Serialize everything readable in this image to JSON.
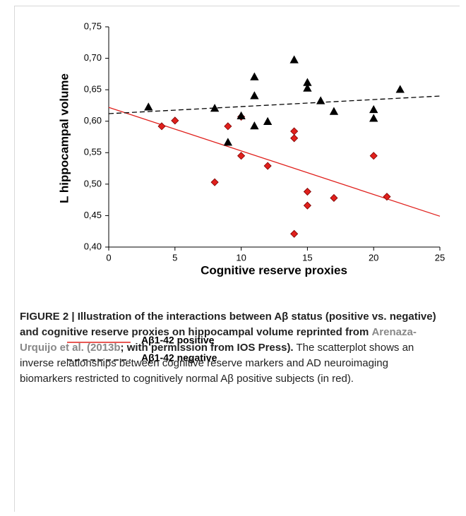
{
  "chart_data": {
    "type": "scatter",
    "xlabel": "Cognitive reserve proxies",
    "ylabel": "L hippocampal volume",
    "xlim": [
      0,
      25
    ],
    "xticks": [
      0,
      5,
      10,
      15,
      20,
      25
    ],
    "ylim": [
      0.4,
      0.75
    ],
    "yticks": [
      {
        "value": 0.4,
        "label": "0,40"
      },
      {
        "value": 0.45,
        "label": "0,45"
      },
      {
        "value": 0.5,
        "label": "0,50"
      },
      {
        "value": 0.55,
        "label": "0,55"
      },
      {
        "value": 0.6,
        "label": "0,60"
      },
      {
        "value": 0.65,
        "label": "0,65"
      },
      {
        "value": 0.7,
        "label": "0,70"
      },
      {
        "value": 0.75,
        "label": "0,75"
      }
    ],
    "series": [
      {
        "name": "Aβ1-42 positive",
        "color": "#e0201c",
        "marker": "diamond",
        "line_style": "solid",
        "x": [
          4,
          5,
          8,
          9,
          10,
          10,
          12,
          14,
          14,
          14,
          15,
          15,
          17,
          20,
          21
        ],
        "values": [
          0.592,
          0.601,
          0.503,
          0.592,
          0.607,
          0.545,
          0.529,
          0.584,
          0.573,
          0.421,
          0.488,
          0.466,
          0.478,
          0.545,
          0.48
        ],
        "trend_x": [
          0,
          25
        ],
        "trend_values": [
          0.622,
          0.449
        ]
      },
      {
        "name": "Aβ1-42 negative",
        "color": "#000000",
        "marker": "triangle",
        "line_style": "dashed",
        "x": [
          3,
          8,
          9,
          10,
          11,
          11,
          11,
          12,
          14,
          15,
          15,
          16,
          17,
          20,
          20,
          22
        ],
        "values": [
          0.622,
          0.62,
          0.566,
          0.608,
          0.67,
          0.64,
          0.592,
          0.599,
          0.697,
          0.661,
          0.652,
          0.632,
          0.615,
          0.618,
          0.604,
          0.65
        ],
        "trend_x": [
          0,
          25
        ],
        "trend_values": [
          0.612,
          0.64
        ]
      }
    ]
  },
  "caption": {
    "label": "FIGURE 2 | Illustration of the interactions between Aβ status (positive vs. negative) and cognitive reserve proxies on hippocampal volume reprinted from",
    "link": "Arenaza-Urquijo et al. (2013b",
    "bold_tail": "; with permission from IOS Press).",
    "text": "The scatterplot shows an inverse relationships between cognitive reserve markers and AD neuroimaging biomarkers restricted to cognitively normal Aβ positive subjects (in red)."
  }
}
